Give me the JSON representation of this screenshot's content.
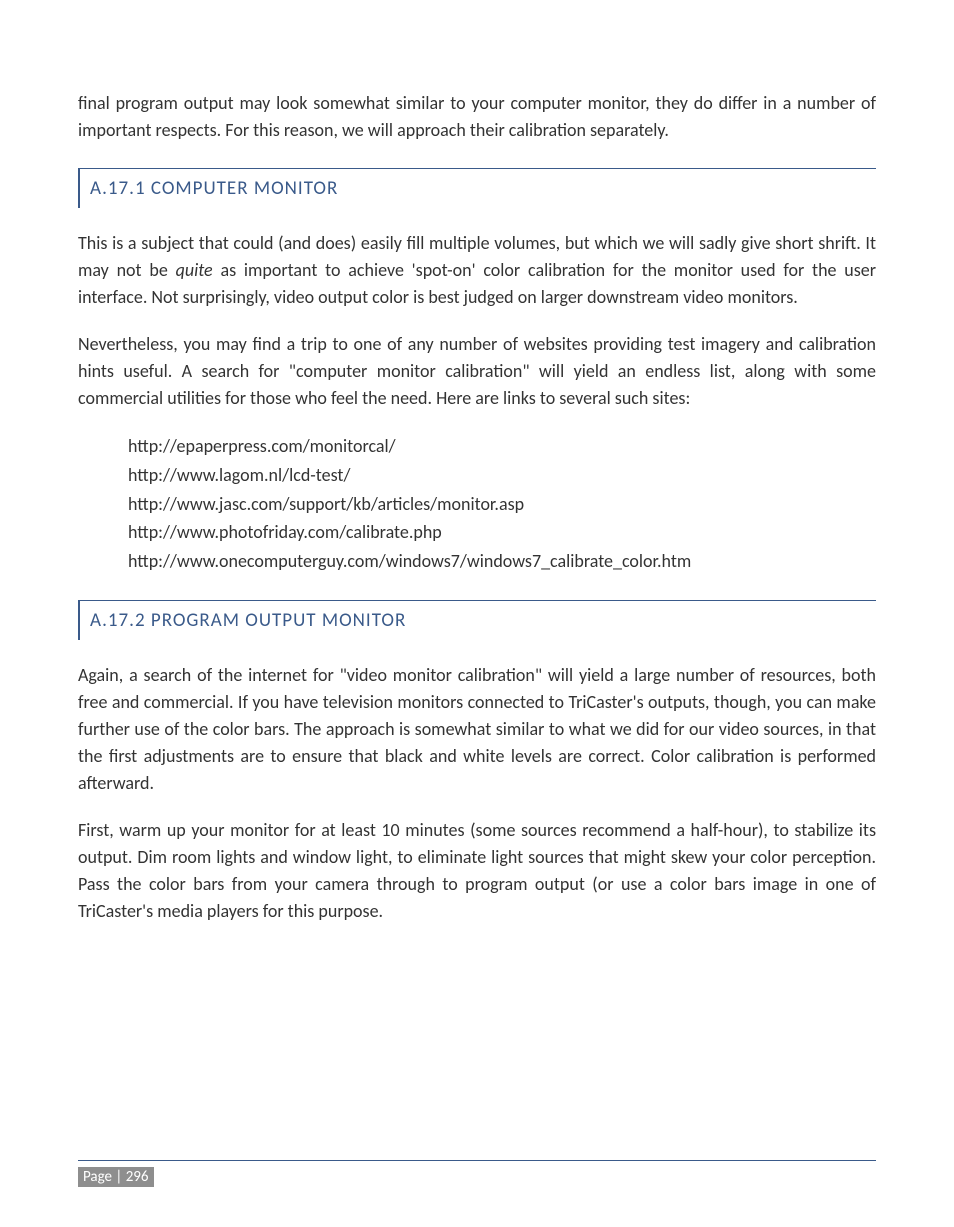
{
  "colors": {
    "heading": "#3a5a8a",
    "body_text": "#333333",
    "footer_bg": "#8e8e8e",
    "footer_text": "#ffffff",
    "rule": "#3a5a8a"
  },
  "intro_para": "final program output may look somewhat similar to your computer monitor, they do differ in a number of important respects.  For this reason, we will approach their calibration separately.",
  "section1": {
    "heading": "A.17.1 COMPUTER MONITOR",
    "para1_a": "This is a subject that could (and does) easily fill multiple volumes, but which we will sadly give short shrift.  It may not be ",
    "para1_italic": "quite",
    "para1_b": " as important to achieve 'spot-on' color calibration for the monitor used for the user interface.  Not surprisingly, video output color is best judged on larger downstream video monitors.",
    "para2": "Nevertheless, you may find a trip to one of any number of websites providing test imagery and calibration hints useful.   A search for \"computer monitor calibration\" will yield an endless list, along with some commercial utilities for those who feel the need.  Here are links to several such sites:",
    "links": [
      "http://epaperpress.com/monitorcal/",
      "http://www.lagom.nl/lcd-test/",
      "http://www.jasc.com/support/kb/articles/monitor.asp",
      "http://www.photofriday.com/calibrate.php",
      "http://www.onecomputerguy.com/windows7/windows7_calibrate_color.htm"
    ]
  },
  "section2": {
    "heading": "A.17.2 PROGRAM OUTPUT MONITOR",
    "para1": "Again, a search of the internet for \"video monitor calibration\" will yield a large number of resources, both free and commercial.  If you have television monitors connected to TriCaster's outputs, though, you can make further use of the color bars.  The approach is somewhat similar to what we did for our video sources, in that the first adjustments are to ensure that black and white levels are correct.  Color calibration is performed afterward.",
    "para2": "First, warm up your monitor for at least 10 minutes (some sources recommend a half-hour), to stabilize its output.  Dim room lights and window light, to eliminate light sources that might skew your color perception.  Pass the color bars from your camera through to program output (or use a color bars image in one of TriCaster's media players for this purpose."
  },
  "footer": {
    "page_label": "Page | 296"
  }
}
